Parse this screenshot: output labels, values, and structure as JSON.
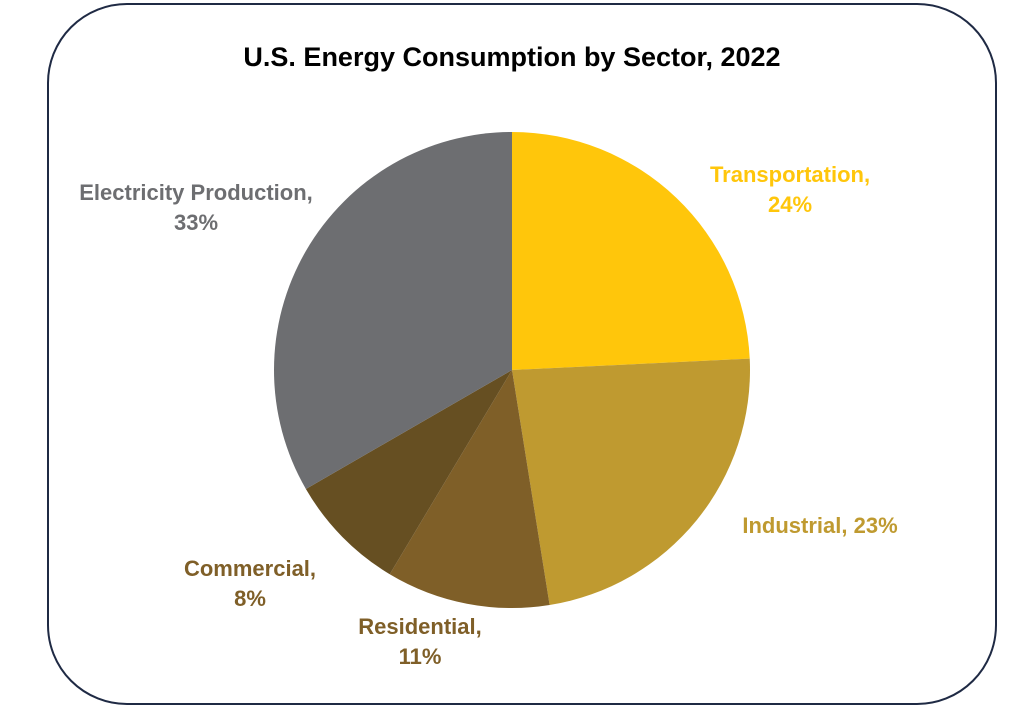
{
  "chart_data": {
    "type": "pie",
    "title": "U.S. Energy Consumption by Sector, 2022",
    "start": "top",
    "direction": "clockwise",
    "slices": [
      {
        "label": "Transportation",
        "value": 24,
        "display": "Transportation,",
        "pct": "24%",
        "color": "#ffc60b",
        "label_color": "#ffc60b"
      },
      {
        "label": "Industrial",
        "value": 23,
        "display": "Industrial, 23%",
        "pct": "",
        "color": "#bf9a30",
        "label_color": "#bf9a30"
      },
      {
        "label": "Residential",
        "value": 11,
        "display": "Residential,",
        "pct": "11%",
        "color": "#7f5f28",
        "label_color": "#7f5f28"
      },
      {
        "label": "Commercial",
        "value": 8,
        "display": "Commercial,",
        "pct": "8%",
        "color": "#664f22",
        "label_color": "#7f5f28"
      },
      {
        "label": "Electricity Production",
        "value": 33,
        "display": "Electricity Production,",
        "pct": "33%",
        "color": "#6d6e71",
        "label_color": "#6d6e71"
      }
    ]
  }
}
